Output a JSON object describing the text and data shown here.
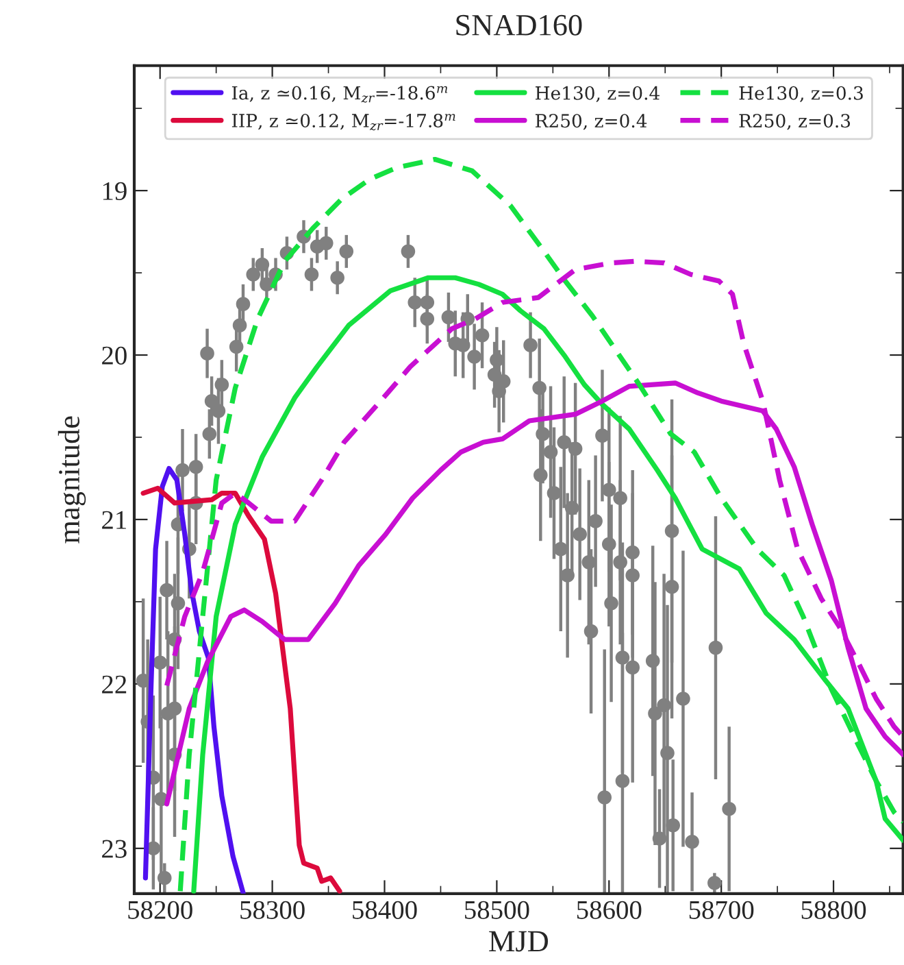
{
  "chart_data": {
    "type": "line",
    "title": "SNAD160",
    "xlabel": "MJD",
    "ylabel": "magnitude",
    "xlim": [
      58177,
      58862
    ],
    "ylim": [
      23.275,
      18.24
    ],
    "xticks": [
      58200,
      58300,
      58400,
      58500,
      58600,
      58700,
      58800
    ],
    "yticks": [
      19,
      20,
      21,
      22,
      23
    ],
    "grid": false,
    "legend": "top",
    "series": [
      {
        "type": "scatter",
        "color": "#808080",
        "marker": "circle",
        "x": [
          58185,
          58189,
          58194,
          58201,
          58200,
          58206,
          58213,
          58213,
          58213,
          58216,
          58216,
          58220,
          58232,
          58232,
          58244,
          58246,
          58255,
          58242,
          58268,
          58271,
          58274,
          58295,
          58303,
          58291,
          58328,
          58335,
          58348,
          58358,
          58366,
          58283,
          58313,
          58340,
          58252,
          58226,
          58207,
          58194,
          58204,
          58421,
          58427,
          58438,
          58438,
          58457,
          58474,
          58463,
          58470,
          58480,
          58487,
          58500,
          58498,
          58506,
          58502,
          58530,
          58538,
          58541,
          58539,
          58560,
          58570,
          58594,
          58548,
          58551,
          58557,
          58563,
          58567,
          58574,
          58582,
          58584,
          58588,
          58600,
          58610,
          58600,
          58610,
          58621,
          58621,
          58602,
          58612,
          58621,
          58596,
          58612,
          58639,
          58641,
          58649,
          58652,
          58656,
          58656,
          58666,
          58657,
          58645,
          58674,
          58695,
          58707,
          58694
        ],
        "values": [
          21.98,
          22.23,
          22.57,
          22.7,
          21.87,
          21.43,
          22.15,
          22.43,
          21.73,
          21.51,
          21.03,
          20.7,
          20.68,
          20.9,
          20.48,
          20.28,
          20.18,
          19.99,
          19.95,
          19.82,
          19.69,
          19.57,
          19.51,
          19.45,
          19.28,
          19.51,
          19.32,
          19.53,
          19.37,
          19.51,
          19.38,
          19.34,
          20.34,
          21.18,
          22.18,
          23.0,
          23.18,
          19.37,
          19.68,
          19.68,
          19.78,
          19.77,
          19.78,
          19.93,
          19.94,
          20.01,
          19.88,
          20.03,
          20.12,
          20.16,
          20.22,
          19.94,
          20.2,
          20.48,
          20.73,
          20.53,
          20.57,
          20.49,
          20.59,
          20.84,
          21.18,
          21.34,
          20.93,
          21.09,
          21.26,
          21.68,
          21.01,
          20.82,
          20.87,
          21.15,
          21.26,
          21.2,
          21.34,
          21.51,
          21.84,
          21.9,
          22.69,
          22.59,
          21.86,
          22.18,
          22.13,
          22.42,
          21.07,
          21.41,
          22.09,
          22.86,
          22.94,
          22.96,
          21.78,
          22.76,
          23.21
        ],
        "errors": [
          0.5,
          0.5,
          0.5,
          0.5,
          0.4,
          0.3,
          0.5,
          0.5,
          0.4,
          0.4,
          0.3,
          0.25,
          0.2,
          0.25,
          0.15,
          0.15,
          0.15,
          0.15,
          0.15,
          0.12,
          0.12,
          0.1,
          0.1,
          0.1,
          0.1,
          0.1,
          0.1,
          0.1,
          0.1,
          0.1,
          0.1,
          0.1,
          0.2,
          0.3,
          0.5,
          0.25,
          0.09,
          0.1,
          0.15,
          0.15,
          0.15,
          0.15,
          0.15,
          0.2,
          0.2,
          0.2,
          0.2,
          0.2,
          0.2,
          0.25,
          0.25,
          0.2,
          0.3,
          0.3,
          0.4,
          0.4,
          0.4,
          0.4,
          0.4,
          0.4,
          0.5,
          0.5,
          0.4,
          0.4,
          0.5,
          0.5,
          0.4,
          0.5,
          0.5,
          0.5,
          0.5,
          0.5,
          0.5,
          0.6,
          0.7,
          0.7,
          0.9,
          0.9,
          0.7,
          0.8,
          0.8,
          0.9,
          0.8,
          0.8,
          0.9,
          0.4,
          0.3,
          0.3,
          0.8,
          0.5,
          0.06
        ]
      },
      {
        "name": "Ia, z ≃0.16, M$_{zr}$=-18.6$^{m}$",
        "color": "#5010f0",
        "line_style": "solid",
        "x": [
          58187,
          58192,
          58196,
          58202,
          58208,
          58215,
          58222,
          58228,
          58235,
          58243,
          58248,
          58255,
          58265,
          58274
        ],
        "values": [
          23.18,
          22.01,
          21.18,
          20.8,
          20.69,
          20.76,
          21.09,
          21.43,
          21.68,
          21.84,
          22.26,
          22.68,
          23.05,
          23.27
        ]
      },
      {
        "name": "IIP, z ≃0.12, M$_{zr}$=-17.8$^{m}$",
        "color": "#dc0a3c",
        "line_style": "solid",
        "x": [
          58185,
          58198,
          58213,
          58246,
          58255,
          58267,
          58279,
          58293,
          58303,
          58316,
          58324,
          58328,
          58340,
          58344,
          58352,
          58360
        ],
        "values": [
          20.84,
          20.81,
          20.9,
          20.88,
          20.84,
          20.84,
          20.98,
          21.12,
          21.45,
          22.15,
          22.98,
          23.09,
          23.12,
          23.2,
          23.18,
          23.26
        ]
      },
      {
        "name": "He130, z=0.4",
        "color": "#14e040",
        "line_style": "solid",
        "x": [
          58230,
          58238,
          58250,
          58267,
          58291,
          58320,
          58340,
          58368,
          58405,
          58439,
          58463,
          58484,
          58505,
          58521,
          58542,
          58561,
          58578,
          58594,
          58618,
          58643,
          58659,
          58683,
          58716,
          58740,
          58765,
          58793,
          58813,
          58838,
          58846,
          58862
        ],
        "values": [
          23.26,
          22.43,
          21.59,
          21.03,
          20.62,
          20.26,
          20.07,
          19.82,
          19.61,
          19.53,
          19.53,
          19.57,
          19.63,
          19.73,
          19.84,
          20.01,
          20.18,
          20.3,
          20.45,
          20.7,
          20.87,
          21.18,
          21.3,
          21.57,
          21.73,
          21.98,
          22.15,
          22.59,
          22.82,
          22.95
        ]
      },
      {
        "name": "R250, z=0.4",
        "color": "#c80fd2",
        "line_style": "solid",
        "x": [
          58206,
          58226,
          58242,
          58263,
          58275,
          58291,
          58311,
          58332,
          58356,
          58377,
          58401,
          58425,
          58450,
          58468,
          58488,
          58505,
          58529,
          58570,
          58594,
          58618,
          58659,
          58679,
          58700,
          58737,
          58749,
          58765,
          58781,
          58798,
          58813,
          58829,
          58846,
          58862
        ],
        "values": [
          22.73,
          22.15,
          21.87,
          21.59,
          21.55,
          21.62,
          21.73,
          21.73,
          21.51,
          21.28,
          21.09,
          20.87,
          20.7,
          20.59,
          20.53,
          20.51,
          20.4,
          20.36,
          20.28,
          20.19,
          20.17,
          20.23,
          20.28,
          20.34,
          20.45,
          20.68,
          21.03,
          21.37,
          21.78,
          22.15,
          22.32,
          22.43
        ]
      },
      {
        "name": "He130, z=0.3",
        "color": "#14e040",
        "line_style": "dashed",
        "x": [
          58218,
          58226,
          58238,
          58250,
          58267,
          58287,
          58311,
          58336,
          58362,
          58387,
          58411,
          58445,
          58478,
          58512,
          58539,
          58561,
          58585,
          58602,
          58627,
          58655,
          58676,
          58700,
          58732,
          58756,
          58773,
          58798,
          58822,
          58838,
          58854,
          58862
        ],
        "values": [
          23.26,
          22.43,
          21.59,
          20.76,
          20.2,
          19.78,
          19.43,
          19.23,
          19.05,
          18.93,
          18.86,
          18.81,
          18.88,
          19.09,
          19.34,
          19.55,
          19.76,
          19.93,
          20.18,
          20.48,
          20.59,
          20.87,
          21.18,
          21.34,
          21.59,
          22.03,
          22.37,
          22.59,
          22.78,
          22.84
        ]
      },
      {
        "name": "R250, z=0.3",
        "color": "#c80fd2",
        "line_style": "dashed",
        "x": [
          58206,
          58222,
          58238,
          58255,
          58267,
          58279,
          58299,
          58320,
          58344,
          58364,
          58399,
          58423,
          58460,
          58481,
          58505,
          58537,
          58570,
          58602,
          58624,
          58649,
          58673,
          58698,
          58710,
          58720,
          58737,
          58752,
          58768,
          58789,
          58805,
          58822,
          58838,
          58854,
          58862
        ],
        "values": [
          22.01,
          21.59,
          21.32,
          20.9,
          20.84,
          20.9,
          21.01,
          21.01,
          20.76,
          20.53,
          20.26,
          20.07,
          19.84,
          19.78,
          19.68,
          19.65,
          19.48,
          19.44,
          19.43,
          19.44,
          19.51,
          19.55,
          19.63,
          19.93,
          20.28,
          20.76,
          21.18,
          21.48,
          21.65,
          21.87,
          22.09,
          22.26,
          22.32
        ]
      }
    ]
  }
}
